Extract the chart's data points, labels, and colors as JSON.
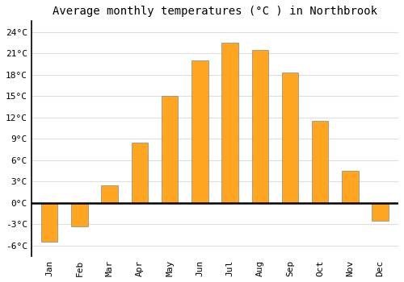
{
  "title": "Average monthly temperatures (°C ) in Northbrook",
  "months": [
    "Jan",
    "Feb",
    "Mar",
    "Apr",
    "May",
    "Jun",
    "Jul",
    "Aug",
    "Sep",
    "Oct",
    "Nov",
    "Dec"
  ],
  "values": [
    -5.5,
    -3.3,
    2.5,
    8.5,
    15.0,
    20.0,
    22.5,
    21.5,
    18.3,
    11.5,
    4.5,
    -2.5
  ],
  "bar_color": "#FFA520",
  "bar_edge_color": "#888888",
  "background_color": "#ffffff",
  "plot_bg_color": "#ffffff",
  "grid_color": "#dddddd",
  "yticks": [
    -6,
    -3,
    0,
    3,
    6,
    9,
    12,
    15,
    18,
    21,
    24
  ],
  "ylim": [
    -7.5,
    25.5
  ],
  "zero_line_color": "#000000",
  "title_fontsize": 10,
  "tick_fontsize": 8,
  "bar_width": 0.55
}
